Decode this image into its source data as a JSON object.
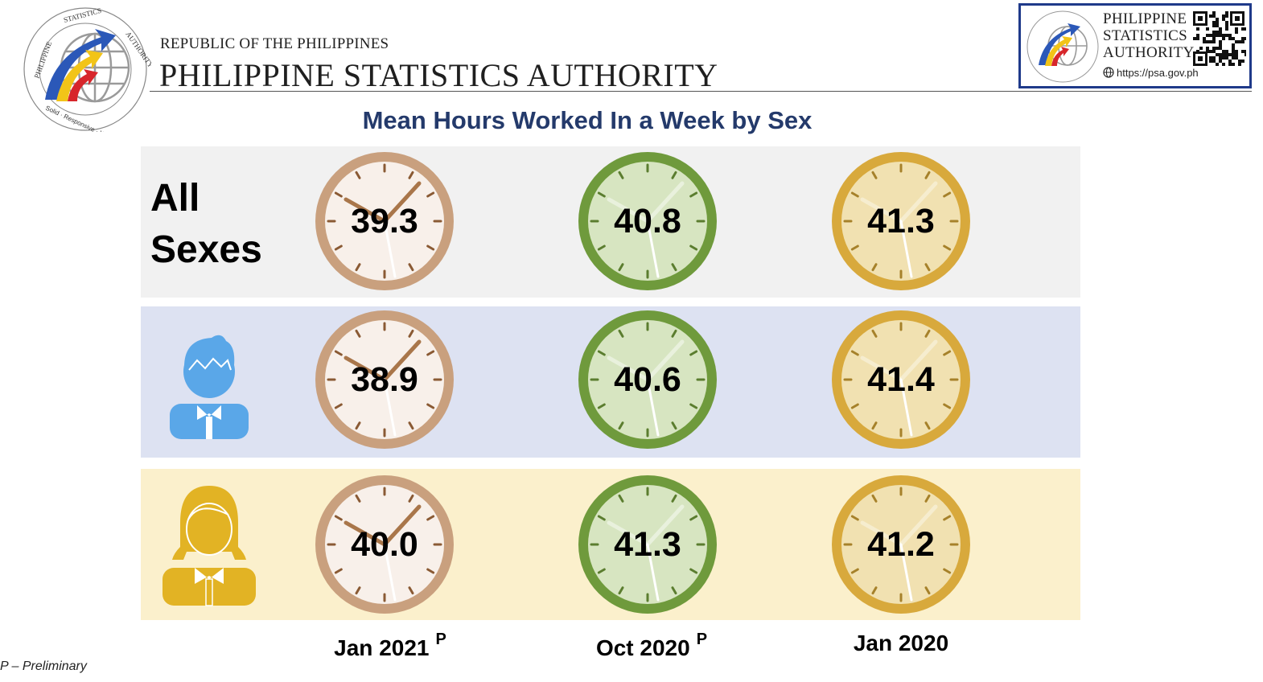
{
  "header": {
    "republic": "REPUBLIC OF THE PHILIPPINES",
    "agency": "PHILIPPINE STATISTICS AUTHORITY",
    "badge": {
      "line1": "PHILIPPINE",
      "line2": "STATISTICS",
      "line3": "AUTHORITY",
      "url": "https://psa.gov.ph"
    },
    "logo_ring_text": "PHILIPPINE STATISTICS AUTHORITY",
    "logo_motto": "Solid · Responsive · World-class"
  },
  "colors": {
    "title": "#243a6b",
    "jan2021_clock": "#c9a07e",
    "oct2020_clock": "#6f9a3c",
    "jan2020_clock": "#d8a93c",
    "band_all": "#f1f1f1",
    "band_male": "#dde2f2",
    "band_female": "#fbf0cc",
    "male_icon": "#5aa7e8",
    "female_icon": "#e2b324"
  },
  "icons": {
    "male": "male-person-icon",
    "female": "female-person-icon",
    "clock": "clock-icon"
  },
  "rows": {
    "all_label": "All Sexes"
  },
  "footnote": "P – Preliminary",
  "chart_data": {
    "type": "table",
    "title": "Mean Hours Worked In a Week by Sex",
    "categories": [
      "Jan 2021",
      "Oct 2020",
      "Jan 2020"
    ],
    "category_marks": [
      "P",
      "P",
      ""
    ],
    "series": [
      {
        "name": "All Sexes",
        "values": [
          39.3,
          40.8,
          41.3
        ]
      },
      {
        "values": [
          38.9,
          40.6,
          41.4
        ]
      },
      {
        "values": [
          40.0,
          41.3,
          41.2
        ]
      }
    ],
    "display_values": [
      [
        "39.3",
        "40.8",
        "41.3"
      ],
      [
        "38.9",
        "40.6",
        "41.4"
      ],
      [
        "40.0",
        "41.3",
        "41.2"
      ]
    ]
  }
}
